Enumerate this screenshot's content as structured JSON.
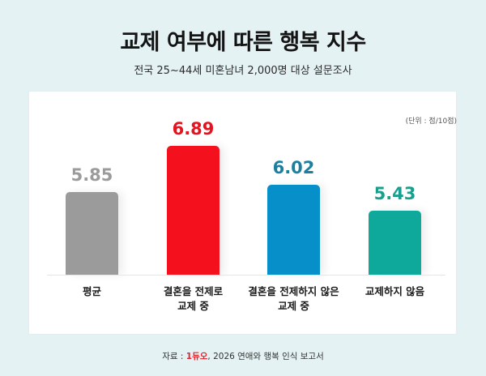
{
  "header": {
    "title": "교제 여부에 따른 행복 지수",
    "subtitle": "전국 25~44세 미혼남녀 2,000명 대상 설문조사"
  },
  "unit_label": "(단위 : 점/10점)",
  "footer": {
    "prefix": "자료 : ",
    "logo_text": "1듀오",
    "suffix": ", 2026 연애와 행복 인식 보고서"
  },
  "colors": {
    "background": "#e5f2f4",
    "average": "#9b9b9b",
    "marriage_premised": "#f4101c",
    "not_marriage_premised": "#078fc9",
    "not_dating": "#0ea99a"
  },
  "chart_data": {
    "type": "bar",
    "title": "교제 여부에 따른 행복 지수",
    "subtitle": "전국 25~44세 미혼남녀 2,000명 대상 설문조사",
    "unit": "점/10점",
    "categories": [
      "평균",
      "결혼을 전제로 교제 중",
      "결혼을 전제하지 않은 교제 중",
      "교제하지 않음"
    ],
    "values": [
      5.85,
      6.89,
      6.02,
      5.43
    ],
    "value_labels": [
      "5.85",
      "6.89",
      "6.02",
      "5.43"
    ],
    "bar_colors": [
      "#9b9b9b",
      "#f4101c",
      "#078fc9",
      "#0ea99a"
    ],
    "label_colors": [
      "#9b9b9b",
      "#e3141e",
      "#1c7fa0",
      "#17a08f"
    ],
    "category_lines": [
      [
        "평균"
      ],
      [
        "결혼을 전제로",
        "교제 중"
      ],
      [
        "결혼을 전제하지 않은",
        "교제 중"
      ],
      [
        "교제하지 않음"
      ]
    ],
    "xlabel": "",
    "ylabel": "",
    "grid": false,
    "legend": "none",
    "source": "자료 : 1듀오, 2026 연애와 행복 인식 보고서"
  }
}
